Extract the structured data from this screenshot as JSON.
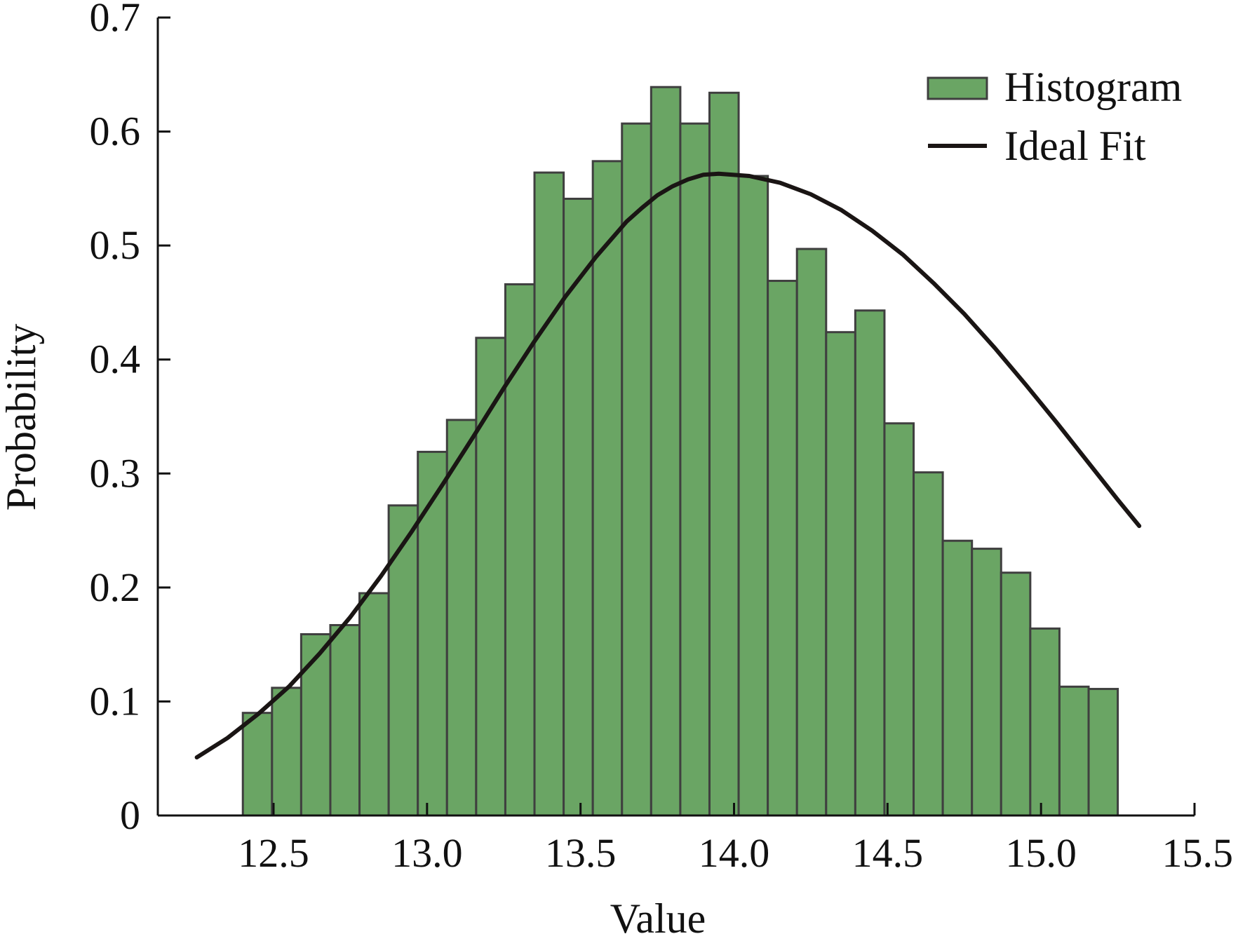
{
  "chart_data": {
    "type": "bar",
    "xlabel": "Value",
    "ylabel": "Probability",
    "xlim": [
      12.2,
      15.5
    ],
    "ylim": [
      0,
      0.7
    ],
    "xticks": [
      {
        "value": 12.5,
        "label": "12.5"
      },
      {
        "value": 13.0,
        "label": "13.0"
      },
      {
        "value": 13.5,
        "label": "13.5"
      },
      {
        "value": 14.0,
        "label": "14.0"
      },
      {
        "value": 14.5,
        "label": "14.5"
      },
      {
        "value": 15.0,
        "label": "15.0"
      },
      {
        "value": 15.5,
        "label": "15.5"
      }
    ],
    "yticks": [
      {
        "value": 0,
        "label": "0"
      },
      {
        "value": 0.1,
        "label": "0.1"
      },
      {
        "value": 0.2,
        "label": "0.2"
      },
      {
        "value": 0.3,
        "label": "0.3"
      },
      {
        "value": 0.4,
        "label": "0.4"
      },
      {
        "value": 0.5,
        "label": "0.5"
      },
      {
        "value": 0.6,
        "label": "0.6"
      },
      {
        "value": 0.7,
        "label": "0.7"
      }
    ],
    "grid": false,
    "legend_position": "top-right",
    "series": [
      {
        "name": "Histogram",
        "kind": "bar",
        "color": "#6aa564",
        "bin_edges": [
          12.4,
          12.495,
          12.59,
          12.685,
          12.78,
          12.875,
          12.97,
          13.065,
          13.16,
          13.255,
          13.35,
          13.445,
          13.54,
          13.635,
          13.73,
          13.825,
          13.92,
          14.015,
          14.11,
          14.205,
          14.3,
          14.395,
          14.49,
          14.585,
          14.68,
          14.775,
          14.87,
          14.965,
          15.06,
          15.155
        ],
        "values": [
          0.09,
          0.112,
          0.159,
          0.167,
          0.195,
          0.272,
          0.319,
          0.347,
          0.419,
          0.466,
          0.564,
          0.541,
          0.574,
          0.607,
          0.639,
          0.607,
          0.634,
          0.561,
          0.469,
          0.497,
          0.424,
          0.443,
          0.344,
          0.301,
          0.241,
          0.234,
          0.213,
          0.164,
          0.113,
          0.111
        ]
      },
      {
        "name": "Ideal Fit",
        "kind": "line",
        "color": "#1a1514",
        "x": [
          12.25,
          12.35,
          12.45,
          12.55,
          12.65,
          12.75,
          12.85,
          12.95,
          13.05,
          13.15,
          13.25,
          13.35,
          13.45,
          13.55,
          13.65,
          13.7,
          13.75,
          13.8,
          13.85,
          13.9,
          13.95,
          14.05,
          14.15,
          14.25,
          14.35,
          14.45,
          14.55,
          14.65,
          14.75,
          14.85,
          14.95,
          15.05,
          15.15,
          15.25,
          15.32
        ],
        "y": [
          0.051,
          0.068,
          0.089,
          0.113,
          0.142,
          0.174,
          0.21,
          0.249,
          0.29,
          0.332,
          0.375,
          0.416,
          0.455,
          0.49,
          0.521,
          0.533,
          0.544,
          0.552,
          0.558,
          0.562,
          0.563,
          0.561,
          0.555,
          0.545,
          0.531,
          0.513,
          0.492,
          0.467,
          0.44,
          0.41,
          0.378,
          0.345,
          0.311,
          0.277,
          0.254
        ]
      }
    ]
  }
}
